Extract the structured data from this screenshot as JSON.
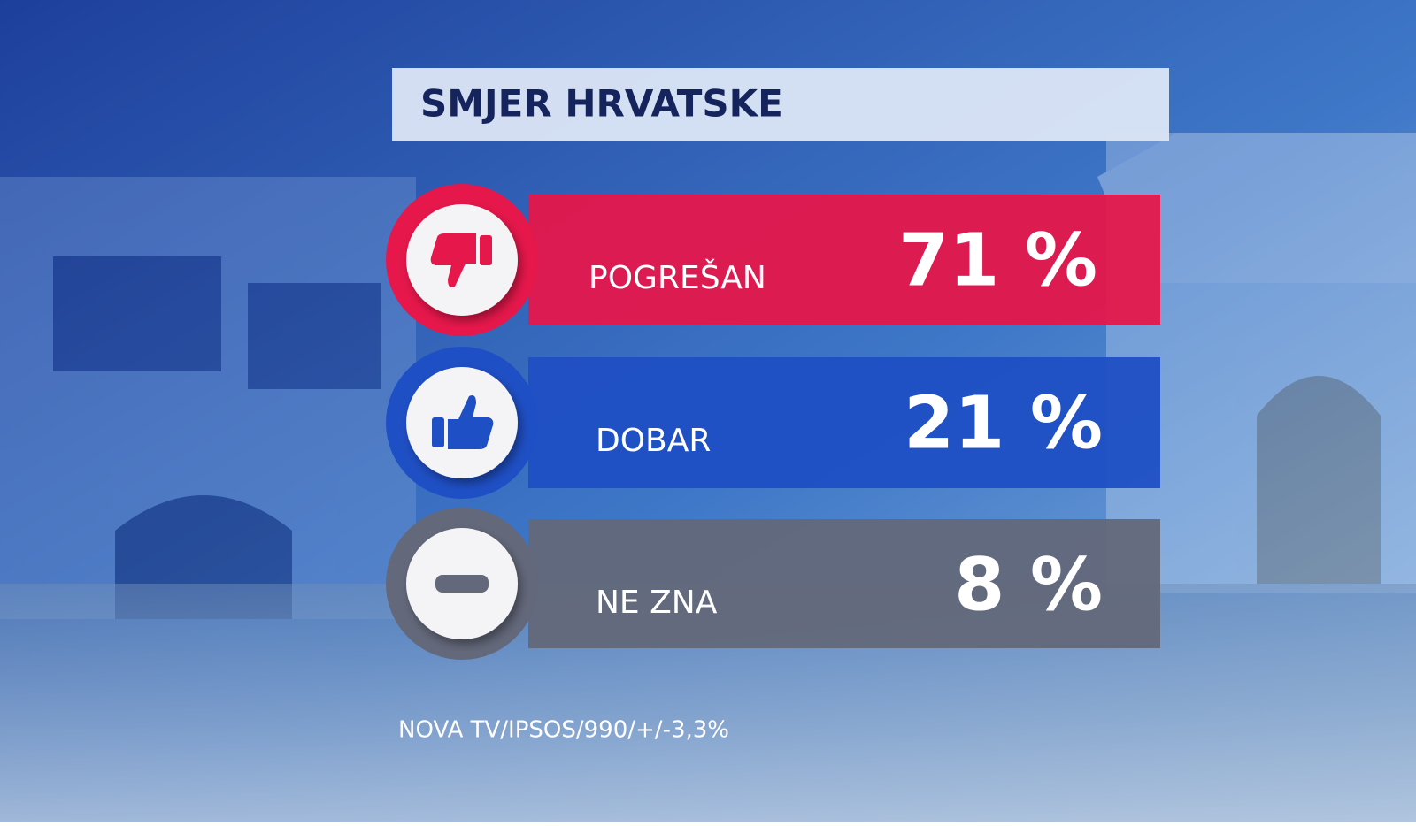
{
  "title": "SMJER HRVATSKE",
  "rows": [
    {
      "label": "POGREŠAN",
      "value": "71 %",
      "color": "#e5174b"
    },
    {
      "label": "DOBAR",
      "value": "21 %",
      "color": "#1f4fc4"
    },
    {
      "label": "NE ZNA",
      "value": "8 %",
      "color": "#63687a"
    }
  ],
  "source": "NOVA TV/IPSOS/990/+/-3,3%"
}
